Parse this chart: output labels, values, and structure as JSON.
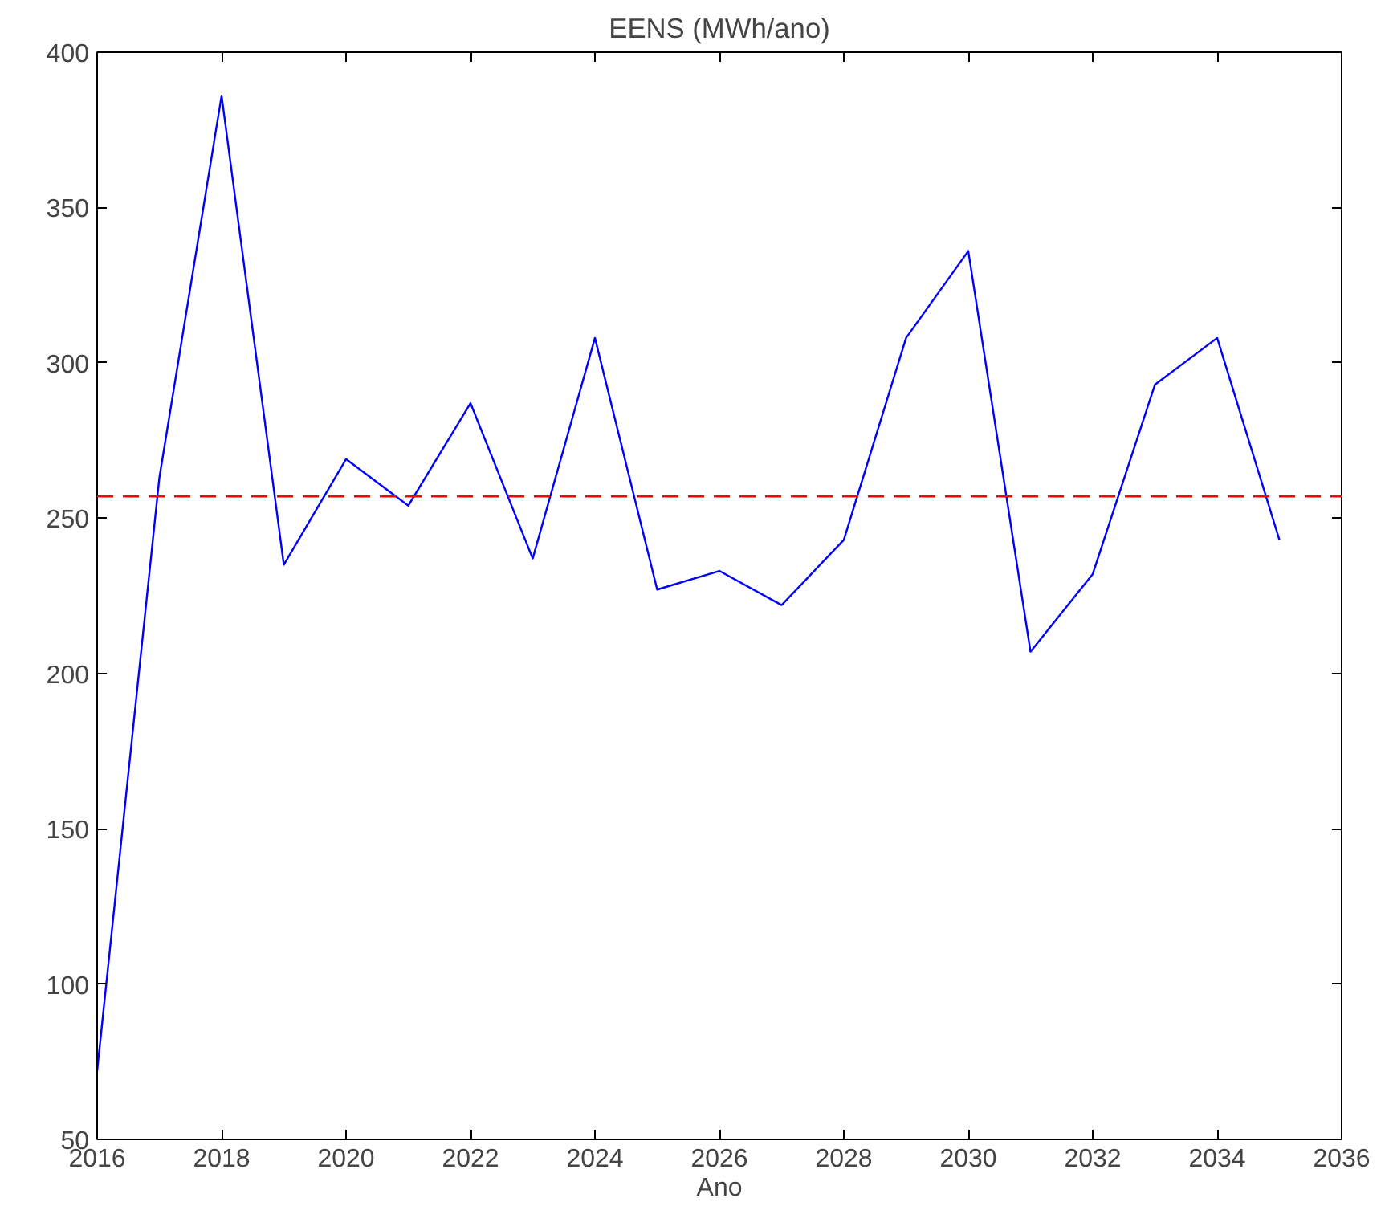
{
  "chart_data": {
    "type": "line",
    "title": "EENS (MWh/ano)",
    "xlabel": "Ano",
    "x": [
      2016,
      2017,
      2018,
      2019,
      2020,
      2021,
      2022,
      2023,
      2024,
      2025,
      2026,
      2027,
      2028,
      2029,
      2030,
      2031,
      2032,
      2033,
      2034,
      2035
    ],
    "series": [
      {
        "color": "#0000ff",
        "values": [
          72,
          263,
          386,
          235,
          269,
          254,
          287,
          237,
          308,
          227,
          233,
          222,
          243,
          308,
          336,
          207,
          232,
          293,
          308,
          243
        ]
      }
    ],
    "xlim": [
      2016,
      2036
    ],
    "xticks": [
      2016,
      2018,
      2020,
      2022,
      2024,
      2026,
      2028,
      2030,
      2032,
      2034,
      2036
    ],
    "ylim": [
      50,
      400
    ],
    "yticks": [
      50,
      100,
      150,
      200,
      250,
      300,
      350,
      400
    ],
    "ref_lines": [
      {
        "axis": "y",
        "value": 257,
        "color": "#ff0000",
        "line_style": "dashed"
      }
    ],
    "grid": false,
    "marker": "none",
    "line_style": "solid"
  }
}
